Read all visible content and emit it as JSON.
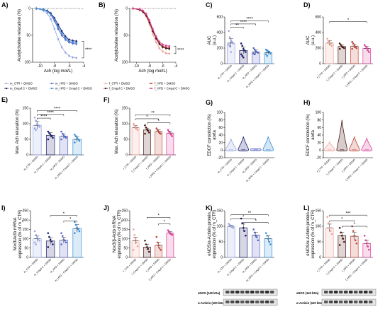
{
  "chart_data": [
    {
      "panel": "A)",
      "type": "line",
      "ylabel": "Acetylcholine relaxation (%)",
      "xlabel": "Ach (log mol/L)",
      "xlim": [
        -11,
        -4
      ],
      "xticks": [
        -10,
        -8,
        -6,
        -4
      ],
      "ylim": [
        0,
        100
      ],
      "yticks": [
        0,
        50,
        100
      ],
      "inverted_y": true,
      "significance": "****",
      "legend": [
        "m_CTR + DMSO",
        "m_HFD + DMSO",
        "m_Cmpd C + DMSO",
        "m_HFD + Cmpd C + DMSO"
      ],
      "series": [
        {
          "name": "m_CTR + DMSO",
          "color": "#9aa8e4",
          "x": [
            -10.5,
            -9.5,
            -9,
            -8.5,
            -8,
            -7.5,
            -7,
            -6.5,
            -6,
            -5.5,
            -5
          ],
          "y": [
            0,
            4,
            9,
            20,
            38,
            57,
            72,
            82,
            88,
            91,
            92
          ]
        },
        {
          "name": "m_HFD + DMSO",
          "color": "#5665c2",
          "x": [
            -10.5,
            -9.5,
            -9,
            -8.5,
            -8,
            -7.5,
            -7,
            -6.5,
            -6,
            -5.5,
            -5
          ],
          "y": [
            0,
            2,
            5,
            12,
            23,
            38,
            50,
            58,
            63,
            65,
            66
          ]
        },
        {
          "name": "m_Cmpd C + DMSO",
          "color": "#1a1e70",
          "x": [
            -10.5,
            -9.5,
            -9,
            -8.5,
            -8,
            -7.5,
            -7,
            -6.5,
            -6,
            -5.5,
            -5
          ],
          "y": [
            0,
            2,
            4,
            9,
            18,
            30,
            42,
            52,
            58,
            60,
            61
          ]
        },
        {
          "name": "m_HFD + Cmpd C + DMSO",
          "color": "#3a8fd6",
          "x": [
            -10.5,
            -9.5,
            -9,
            -8.5,
            -8,
            -7.5,
            -7,
            -6.5,
            -6,
            -5.5,
            -5
          ],
          "y": [
            0,
            2,
            5,
            11,
            21,
            34,
            46,
            55,
            61,
            63,
            64
          ]
        }
      ]
    },
    {
      "panel": "B)",
      "type": "line",
      "ylabel": "Acetylcholine relaxation (%)",
      "xlabel": "Ach (log mol/L)",
      "xlim": [
        -11,
        -4
      ],
      "xticks": [
        -10,
        -8,
        -6,
        -4
      ],
      "ylim": [
        0,
        100
      ],
      "yticks": [
        0,
        50,
        100
      ],
      "inverted_y": true,
      "significance": "****",
      "legend": [
        "f_CTR + DMSO",
        "f_HFD + DMSO",
        "f_Cmpd C + DMSO",
        "f_HFD + Cmpd C + DMSO"
      ],
      "series": [
        {
          "name": "f_CTR + DMSO",
          "color": "#f1a49a",
          "x": [
            -10.5,
            -9.5,
            -9,
            -8.5,
            -8,
            -7.5,
            -7,
            -6.5,
            -6,
            -5.5,
            -5
          ],
          "y": [
            0,
            3,
            7,
            15,
            30,
            48,
            63,
            74,
            80,
            83,
            84
          ]
        },
        {
          "name": "f_HFD + DMSO",
          "color": "#c24a3c",
          "x": [
            -10.5,
            -9.5,
            -9,
            -8.5,
            -8,
            -7.5,
            -7,
            -6.5,
            -6,
            -5.5,
            -5
          ],
          "y": [
            0,
            2,
            5,
            12,
            25,
            40,
            54,
            64,
            70,
            72,
            73
          ]
        },
        {
          "name": "f_Cmpd C + DMSO",
          "color": "#4a1812",
          "x": [
            -10.5,
            -9.5,
            -9,
            -8.5,
            -8,
            -7.5,
            -7,
            -6.5,
            -6,
            -5.5,
            -5
          ],
          "y": [
            0,
            2,
            6,
            13,
            26,
            42,
            56,
            66,
            72,
            74,
            75
          ]
        },
        {
          "name": "f_HFD + Cmpd C + DMSO",
          "color": "#e0419a",
          "x": [
            -10.5,
            -9.5,
            -9,
            -8.5,
            -8,
            -7.5,
            -7,
            -6.5,
            -6,
            -5.5,
            -5
          ],
          "y": [
            0,
            1,
            4,
            10,
            22,
            38,
            52,
            62,
            67,
            69,
            70
          ]
        }
      ]
    },
    {
      "panel": "C)",
      "type": "bar",
      "ylabel": "AUC",
      "ylabel2": "(a.u.)",
      "ylim": [
        0,
        600
      ],
      "yticks": [
        0,
        200,
        400,
        600
      ],
      "categories": [
        "m_CTR + DMSO",
        "m_Cmpd C + DMSO",
        "m_HFD + DMSO",
        "m_HFD + Cmpd C + DMSO"
      ],
      "values": [
        265,
        170,
        150,
        140
      ],
      "errors": [
        55,
        45,
        25,
        20
      ],
      "points": [
        [
          420,
          340,
          300,
          280,
          260,
          240,
          220,
          150
        ],
        [
          260,
          230,
          190,
          170,
          150,
          120,
          100,
          80
        ],
        [
          200,
          180,
          160,
          150,
          140,
          130,
          120
        ],
        [
          180,
          170,
          160,
          150,
          130,
          120,
          100
        ]
      ],
      "colors": [
        "#9aa8e4",
        "#1a1e70",
        "#5665c2",
        "#3a8fd6"
      ],
      "brackets": [
        {
          "from": 0,
          "to": 1,
          "label": "**",
          "y": 470
        },
        {
          "from": 0,
          "to": 2,
          "label": "****",
          "y": 510
        },
        {
          "from": 0,
          "to": 3,
          "label": "****",
          "y": 550
        }
      ]
    },
    {
      "panel": "D)",
      "type": "bar",
      "ylabel": "AUC",
      "ylabel2": "(a.u.)",
      "ylim": [
        0,
        600
      ],
      "yticks": [
        0,
        200,
        400,
        600
      ],
      "categories": [
        "f_CTR + DMSO",
        "f_Cmpd C + DMSO",
        "f_HFD + DMSO",
        "f_HFD + Cmpd C + DMSO"
      ],
      "values": [
        265,
        220,
        225,
        195
      ],
      "errors": [
        30,
        20,
        25,
        25
      ],
      "points": [
        [
          320,
          290,
          270,
          250,
          230
        ],
        [
          260,
          240,
          220,
          210,
          200,
          190
        ],
        [
          280,
          260,
          230,
          210,
          200,
          190
        ],
        [
          240,
          220,
          200,
          170,
          150
        ]
      ],
      "colors": [
        "#f1a49a",
        "#4a1812",
        "#c24a3c",
        "#e0419a"
      ],
      "brackets": [
        {
          "from": 0,
          "to": 3,
          "label": "*",
          "y": 540
        }
      ]
    },
    {
      "panel": "E)",
      "type": "bar",
      "ylabel": "Max. Ach relaxation (%)",
      "ylim": [
        0,
        150
      ],
      "yticks": [
        0,
        50,
        100,
        150
      ],
      "categories": [
        "m_CTR + DMSO",
        "m_Cmpd C + DMSO",
        "m_HFD + DMSO",
        "m_HFD + Cmpd C + DMSO"
      ],
      "values": [
        95,
        63,
        60,
        50
      ],
      "errors": [
        12,
        8,
        7,
        8
      ],
      "points": [
        [
          120,
          110,
          100,
          95,
          90,
          85,
          80
        ],
        [
          75,
          70,
          65,
          60,
          55,
          50
        ],
        [
          75,
          68,
          62,
          58,
          55,
          50
        ],
        [
          65,
          60,
          55,
          50,
          45,
          40
        ]
      ],
      "colors": [
        "#9aa8e4",
        "#1a1e70",
        "#5665c2",
        "#3a8fd6"
      ],
      "brackets": [
        {
          "from": 0,
          "to": 1,
          "label": "****",
          "y": 118
        },
        {
          "from": 0,
          "to": 2,
          "label": "****",
          "y": 130
        },
        {
          "from": 0,
          "to": 3,
          "label": "****",
          "y": 142
        }
      ]
    },
    {
      "panel": "F)",
      "type": "bar",
      "ylabel": "Max. Ach relaxation (%)",
      "ylim": [
        0,
        150
      ],
      "yticks": [
        0,
        50,
        100,
        150
      ],
      "categories": [
        "f_CTR + DMSO",
        "f_Cmpd C + DMSO",
        "f_HFD + DMSO",
        "f_HFD + Cmpd C + DMSO"
      ],
      "values": [
        88,
        80,
        75,
        70
      ],
      "errors": [
        6,
        6,
        5,
        6
      ],
      "points": [
        [
          100,
          95,
          90,
          85,
          80
        ],
        [
          95,
          88,
          82,
          78,
          72,
          68
        ],
        [
          85,
          80,
          75,
          70,
          68
        ],
        [
          80,
          75,
          70,
          65,
          60
        ]
      ],
      "colors": [
        "#f1a49a",
        "#4a1812",
        "#c24a3c",
        "#e0419a"
      ],
      "brackets": [
        {
          "from": 1,
          "to": 3,
          "label": "*",
          "y": 103
        },
        {
          "from": 0,
          "to": 2,
          "label": "*",
          "y": 116
        },
        {
          "from": 0,
          "to": 3,
          "label": "**",
          "y": 129
        }
      ]
    },
    {
      "panel": "G)",
      "type": "violin",
      "ylabel": "EDCF constriction (%)",
      "ylabel2": "aorta",
      "ylim": [
        -20,
        100
      ],
      "yticks": [
        -20,
        0,
        20,
        40,
        60,
        80,
        100
      ],
      "categories": [
        "m_CTR + DMSO",
        "m_Cmpd C + DMSO",
        "m_HFD + DMSO",
        "m_HFD + Cmpd C + DMSO"
      ],
      "ranges": [
        [
          -2,
          30
        ],
        [
          -2,
          36
        ],
        [
          -1,
          4
        ],
        [
          -2,
          36
        ]
      ],
      "colors": [
        "#9aa8e4",
        "#1a1e70",
        "#5665c2",
        "#3a8fd6"
      ]
    },
    {
      "panel": "H)",
      "type": "violin",
      "ylabel": "EDCF constriction (%)",
      "ylabel2": "aorta",
      "ylim": [
        -20,
        100
      ],
      "yticks": [
        -20,
        0,
        20,
        40,
        60,
        80,
        100
      ],
      "categories": [
        "f_CTR + DMSO",
        "f_Cmpd C + DMSO",
        "f_HFD + DMSO",
        "f_HFD + Cmpd C + DMSO"
      ],
      "ranges": [
        [
          -2,
          22
        ],
        [
          -2,
          80
        ],
        [
          -2,
          36
        ],
        [
          -2,
          32
        ]
      ],
      "colors": [
        "#f1a49a",
        "#4a1812",
        "#c24a3c",
        "#e0419a"
      ]
    },
    {
      "panel": "I)",
      "type": "bar",
      "ylabel": "Nox3/Actb mRNA",
      "ylabel2": "expression (% of m_CTR)",
      "ylim": [
        0,
        250
      ],
      "yticks": [
        0,
        50,
        100,
        150,
        200,
        250
      ],
      "categories": [
        "m_CTR + DMSO",
        "m_Cmpd C + DMSO",
        "m_HFD + DMSO",
        "m_HFD + Cmpd C + DMSO"
      ],
      "values": [
        100,
        88,
        92,
        155
      ],
      "errors": [
        15,
        18,
        16,
        20
      ],
      "points": [
        [
          140,
          120,
          110,
          100,
          90,
          80,
          70
        ],
        [
          130,
          110,
          95,
          85,
          70,
          55
        ],
        [
          130,
          115,
          95,
          90,
          80,
          70
        ],
        [
          190,
          175,
          160,
          150,
          140,
          130
        ]
      ],
      "colors": [
        "#9aa8e4",
        "#1a1e70",
        "#5665c2",
        "#3a8fd6"
      ],
      "brackets": [
        {
          "from": 2,
          "to": 3,
          "label": "*",
          "y": 195
        },
        {
          "from": 1,
          "to": 3,
          "label": "*",
          "y": 225
        }
      ]
    },
    {
      "panel": "J)",
      "type": "bar",
      "ylabel": "Nox3/β-Actb mRNA",
      "ylabel2": "expression (% of m_CTR)",
      "ylim": [
        0,
        250
      ],
      "yticks": [
        0,
        50,
        100,
        150,
        200,
        250
      ],
      "categories": [
        "f_CTR + DMSO",
        "f_Cmpd C + DMSO",
        "f_HFD + DMSO",
        "f_HFD + Cmpd C + DMSO"
      ],
      "values": [
        90,
        55,
        65,
        130
      ],
      "errors": [
        18,
        14,
        15,
        8
      ],
      "points": [
        [
          150,
          120,
          100,
          80,
          60,
          40
        ],
        [
          90,
          70,
          55,
          45,
          30
        ],
        [
          110,
          80,
          65,
          50,
          40
        ],
        [
          145,
          138,
          130,
          125,
          120
        ]
      ],
      "colors": [
        "#f1a49a",
        "#4a1812",
        "#c24a3c",
        "#e0419a"
      ],
      "brackets": [
        {
          "from": 2,
          "to": 3,
          "label": "*",
          "y": 180
        },
        {
          "from": 1,
          "to": 3,
          "label": "*",
          "y": 215
        }
      ]
    },
    {
      "panel": "K)",
      "type": "bar",
      "ylabel": "eNOS/α-Actinin protein",
      "ylabel2": "expression (% of m_CTR)",
      "ylim": [
        0,
        150
      ],
      "yticks": [
        0,
        50,
        100,
        150
      ],
      "categories": [
        "m_CTR + DMSO",
        "m_Cmpd C + DMSO",
        "m_HFD + DMSO",
        "m_HFD + Cmpd C + DMSO"
      ],
      "values": [
        100,
        95,
        72,
        60
      ],
      "errors": [
        4,
        12,
        8,
        9
      ],
      "points": [
        [
          108,
          104,
          100,
          98,
          95
        ],
        [
          125,
          110,
          95,
          85,
          70
        ],
        [
          90,
          80,
          70,
          65,
          55
        ],
        [
          78,
          70,
          60,
          50,
          42
        ]
      ],
      "colors": [
        "#9aa8e4",
        "#1a1e70",
        "#5665c2",
        "#3a8fd6"
      ],
      "brackets": [
        {
          "from": 1,
          "to": 3,
          "label": "*",
          "y": 112
        },
        {
          "from": 0,
          "to": 2,
          "label": "*",
          "y": 124
        },
        {
          "from": 0,
          "to": 3,
          "label": "**",
          "y": 137
        }
      ],
      "blot_labels": [
        "eNOS (140 kDa)",
        "α-Actinin (100 kDa)"
      ]
    },
    {
      "panel": "L)",
      "type": "bar",
      "ylabel": "eNOS/α-Actinin protein",
      "ylabel2": "expression (% of m_CTR)",
      "ylim": [
        0,
        150
      ],
      "yticks": [
        0,
        50,
        100,
        150
      ],
      "categories": [
        "f_CTR + DMSO",
        "f_Cmpd C + DMSO",
        "f_HFD + DMSO",
        "f_HFD + Cmpd C + DMSO"
      ],
      "values": [
        95,
        70,
        68,
        45
      ],
      "errors": [
        12,
        10,
        12,
        10
      ],
      "points": [
        [
          130,
          110,
          95,
          85,
          75
        ],
        [
          95,
          80,
          70,
          60,
          50,
          40
        ],
        [
          100,
          85,
          70,
          55,
          45
        ],
        [
          70,
          55,
          45,
          35,
          25
        ]
      ],
      "colors": [
        "#f1a49a",
        "#4a1812",
        "#c24a3c",
        "#e0419a"
      ],
      "brackets": [
        {
          "from": 1,
          "to": 3,
          "label": "*",
          "y": 100
        },
        {
          "from": 0,
          "to": 2,
          "label": "*",
          "y": 118
        },
        {
          "from": 0,
          "to": 3,
          "label": "***",
          "y": 136
        }
      ],
      "blot_labels": [
        "eNOS (140 kDa)",
        "α-Actinin (100 kDa)"
      ]
    }
  ]
}
